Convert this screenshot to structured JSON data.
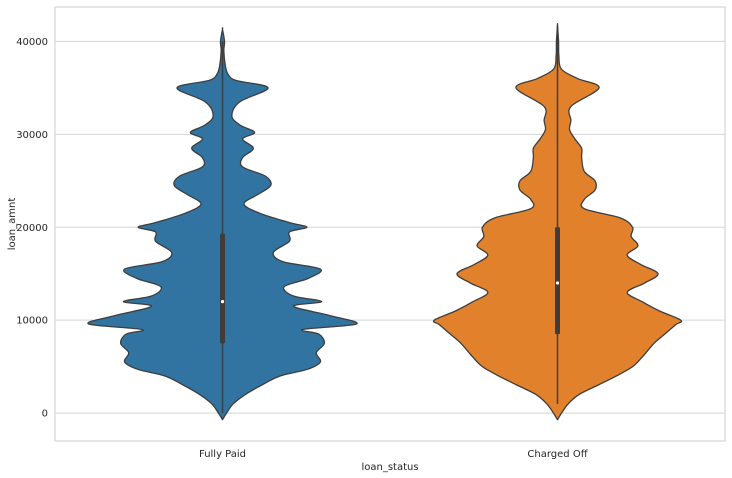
{
  "chart_data": {
    "type": "violin",
    "xlabel": "loan_status",
    "ylabel": "loan_amnt",
    "ylim": [
      -3000,
      43700
    ],
    "y_ticks": [
      0,
      10000,
      20000,
      30000,
      40000
    ],
    "grid": "horizontal",
    "categories": [
      "Fully Paid",
      "Charged Off"
    ],
    "colors": {
      "Fully Paid": "#3274a1",
      "Charged Off": "#e1812c",
      "outline": "#3d3d3d",
      "grid": "#d5d5d5"
    },
    "violins": [
      {
        "category": "Fully Paid",
        "median": 12000,
        "q1": 7500,
        "q3": 19300,
        "whisker_low": 0,
        "whisker_high": 36000,
        "max": 40000,
        "density_profile": [
          [
            -700,
            0.0
          ],
          [
            0,
            0.03
          ],
          [
            1000,
            0.08
          ],
          [
            2000,
            0.17
          ],
          [
            3000,
            0.29
          ],
          [
            4000,
            0.43
          ],
          [
            4700,
            0.63
          ],
          [
            5500,
            0.73
          ],
          [
            6500,
            0.7
          ],
          [
            7500,
            0.76
          ],
          [
            8500,
            0.72
          ],
          [
            9000,
            0.6
          ],
          [
            9600,
            1.0
          ],
          [
            10500,
            0.8
          ],
          [
            11500,
            0.53
          ],
          [
            12000,
            0.74
          ],
          [
            12600,
            0.53
          ],
          [
            13600,
            0.46
          ],
          [
            14500,
            0.64
          ],
          [
            15500,
            0.73
          ],
          [
            16300,
            0.45
          ],
          [
            17300,
            0.38
          ],
          [
            18500,
            0.5
          ],
          [
            19500,
            0.5
          ],
          [
            20000,
            0.63
          ],
          [
            20500,
            0.5
          ],
          [
            21500,
            0.28
          ],
          [
            22500,
            0.16
          ],
          [
            23500,
            0.26
          ],
          [
            24500,
            0.36
          ],
          [
            25500,
            0.32
          ],
          [
            26500,
            0.15
          ],
          [
            27500,
            0.15
          ],
          [
            28500,
            0.23
          ],
          [
            29500,
            0.15
          ],
          [
            30200,
            0.24
          ],
          [
            31000,
            0.13
          ],
          [
            32000,
            0.07
          ],
          [
            33500,
            0.13
          ],
          [
            35000,
            0.34
          ],
          [
            35800,
            0.1
          ],
          [
            36500,
            0.04
          ],
          [
            37500,
            0.02
          ],
          [
            39000,
            0.01
          ],
          [
            40000,
            0.015
          ],
          [
            41300,
            0.0
          ]
        ]
      },
      {
        "category": "Charged Off",
        "median": 14000,
        "q1": 8500,
        "q3": 20000,
        "whisker_low": 1000,
        "whisker_high": 36500,
        "max": 41700,
        "density_profile": [
          [
            -700,
            0.0
          ],
          [
            0,
            0.03
          ],
          [
            1000,
            0.08
          ],
          [
            2000,
            0.16
          ],
          [
            3000,
            0.3
          ],
          [
            4000,
            0.44
          ],
          [
            5000,
            0.56
          ],
          [
            6000,
            0.63
          ],
          [
            7500,
            0.72
          ],
          [
            8500,
            0.8
          ],
          [
            9500,
            0.88
          ],
          [
            10000,
            0.92
          ],
          [
            11000,
            0.76
          ],
          [
            12000,
            0.63
          ],
          [
            13000,
            0.52
          ],
          [
            14000,
            0.65
          ],
          [
            15000,
            0.75
          ],
          [
            16000,
            0.62
          ],
          [
            17000,
            0.52
          ],
          [
            18000,
            0.6
          ],
          [
            19000,
            0.55
          ],
          [
            20000,
            0.56
          ],
          [
            21000,
            0.47
          ],
          [
            22000,
            0.2
          ],
          [
            23000,
            0.2
          ],
          [
            24000,
            0.28
          ],
          [
            25000,
            0.28
          ],
          [
            26000,
            0.2
          ],
          [
            27500,
            0.18
          ],
          [
            28500,
            0.18
          ],
          [
            29500,
            0.13
          ],
          [
            30500,
            0.09
          ],
          [
            31500,
            0.1
          ],
          [
            33000,
            0.1
          ],
          [
            35000,
            0.31
          ],
          [
            36000,
            0.15
          ],
          [
            37000,
            0.03
          ],
          [
            38500,
            0.01
          ],
          [
            40000,
            0.008
          ],
          [
            41700,
            0.0
          ]
        ]
      }
    ]
  }
}
